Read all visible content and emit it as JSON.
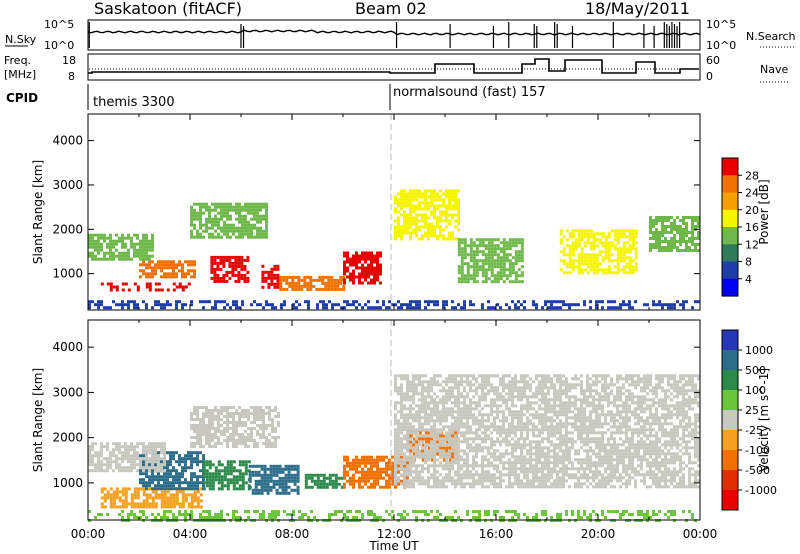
{
  "header": {
    "site": "Saskatoon (fitACF)",
    "beam": "Beam 02",
    "date": "18/May/2011"
  },
  "noise_panel": {
    "left_label": "N.Sky",
    "left_ticks": [
      "10^5",
      "10^0"
    ],
    "right_ticks": [
      "10^5",
      "10^0"
    ],
    "right_label": "N.Search"
  },
  "freq_panel": {
    "left_label_1": "Freq.",
    "left_label_2": "[MHz]",
    "left_ticks": [
      "18",
      "8"
    ],
    "right_ticks": [
      "60",
      "0"
    ],
    "right_label": "Nave"
  },
  "cpid": {
    "label": "CPID",
    "mode_1": "themis 3300",
    "mode_2": "normalsound (fast) 157"
  },
  "time_axis": {
    "ticks": [
      "00:00",
      "04:00",
      "08:00",
      "12:00",
      "16:00",
      "20:00",
      "00:00"
    ],
    "label": "Time UT"
  },
  "power_panel": {
    "ylabel": "Slant Range [km]",
    "yticks": [
      "1000",
      "2000",
      "3000",
      "4000"
    ],
    "colorbar_label": "Power [dB]",
    "colorbar_ticks": [
      "28",
      "24",
      "20",
      "16",
      "12",
      "8",
      "4"
    ],
    "colors": [
      "#0000ee",
      "#1f3da6",
      "#2f7a5a",
      "#6fb84a",
      "#f5f500",
      "#f5a000",
      "#f07000",
      "#e80000"
    ]
  },
  "velocity_panel": {
    "ylabel": "Slant Range [km]",
    "yticks": [
      "1000",
      "2000",
      "3000",
      "4000"
    ],
    "colorbar_label": "Velocity [m s^-1]",
    "colorbar_ticks": [
      "1000",
      "500",
      "100",
      "25",
      "-25",
      "-100",
      "-500",
      "-1000"
    ],
    "colors": [
      "#2636b4",
      "#2c6d8a",
      "#2b8a4a",
      "#6cc63c",
      "#c8c8c0",
      "#f5a020",
      "#f07000",
      "#e03000",
      "#e80000"
    ]
  },
  "chart_data": [
    {
      "type": "heatmap",
      "title": "Power",
      "xlabel": "Time UT",
      "ylabel": "Slant Range [km]",
      "xlim": [
        "00:00",
        "24:00"
      ],
      "ylim": [
        180,
        4600
      ],
      "colorbar": {
        "label": "Power [dB]",
        "range": [
          0,
          30
        ]
      },
      "regions": [
        {
          "x": [
            0.5,
            4.0
          ],
          "y": [
            600,
            800
          ],
          "value": 28
        },
        {
          "x": [
            2.0,
            4.2
          ],
          "y": [
            900,
            1300
          ],
          "value": 26
        },
        {
          "x": [
            4.8,
            6.3
          ],
          "y": [
            850,
            1400
          ],
          "value": 28
        },
        {
          "x": [
            6.8,
            7.4
          ],
          "y": [
            700,
            1200
          ],
          "value": 28
        },
        {
          "x": [
            7.5,
            10.0
          ],
          "y": [
            650,
            950
          ],
          "value": 24
        },
        {
          "x": [
            10.0,
            11.5
          ],
          "y": [
            800,
            1500
          ],
          "value": 27
        },
        {
          "x": [
            0.0,
            2.5
          ],
          "y": [
            1300,
            1900
          ],
          "value": 14
        },
        {
          "x": [
            4.0,
            7.0
          ],
          "y": [
            1800,
            2600
          ],
          "value": 14
        },
        {
          "x": [
            12.0,
            14.5
          ],
          "y": [
            1800,
            2900
          ],
          "value": 16
        },
        {
          "x": [
            14.5,
            17.0
          ],
          "y": [
            800,
            1800
          ],
          "value": 14
        },
        {
          "x": [
            18.5,
            21.5
          ],
          "y": [
            1000,
            2000
          ],
          "value": 16
        },
        {
          "x": [
            22.0,
            24.0
          ],
          "y": [
            1500,
            2300
          ],
          "value": 12
        },
        {
          "x": [
            0.0,
            24.0
          ],
          "y": [
            200,
            400
          ],
          "value": 6
        }
      ]
    },
    {
      "type": "heatmap",
      "title": "Velocity",
      "xlabel": "Time UT",
      "ylabel": "Slant Range [km]",
      "xlim": [
        "00:00",
        "24:00"
      ],
      "ylim": [
        180,
        4600
      ],
      "colorbar": {
        "label": "Velocity [m s^-1]",
        "range": [
          -1000,
          1000
        ]
      },
      "regions": [
        {
          "x": [
            0.5,
            4.5
          ],
          "y": [
            500,
            900
          ],
          "value": -120
        },
        {
          "x": [
            2.0,
            4.5
          ],
          "y": [
            900,
            1700
          ],
          "value": 400
        },
        {
          "x": [
            4.5,
            6.3
          ],
          "y": [
            900,
            1500
          ],
          "value": 100
        },
        {
          "x": [
            6.3,
            8.2
          ],
          "y": [
            800,
            1400
          ],
          "value": 300
        },
        {
          "x": [
            8.5,
            10.0
          ],
          "y": [
            900,
            1200
          ],
          "value": 250
        },
        {
          "x": [
            10.0,
            12.5
          ],
          "y": [
            900,
            1600
          ],
          "value": -200
        },
        {
          "x": [
            12.5,
            14.5
          ],
          "y": [
            1500,
            2200
          ],
          "value": -300
        },
        {
          "x": [
            0.0,
            3.0
          ],
          "y": [
            1300,
            1900
          ],
          "value": 0
        },
        {
          "x": [
            4.0,
            7.5
          ],
          "y": [
            1800,
            2700
          ],
          "value": 0
        },
        {
          "x": [
            12.0,
            24.0
          ],
          "y": [
            900,
            3400
          ],
          "value": 0
        },
        {
          "x": [
            0.0,
            24.0
          ],
          "y": [
            200,
            400
          ],
          "value": 60
        }
      ]
    }
  ]
}
